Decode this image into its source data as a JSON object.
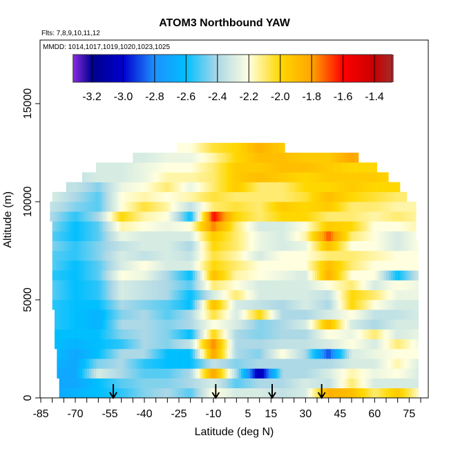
{
  "chart_data": {
    "type": "heatmap",
    "title": "ATOM3 Northbound YAW",
    "subtitle_flights": "Flts: 7,8,9,10,11,12",
    "subtitle_dates": "MMDD: 1014,1017,1019,1020,1023,1025",
    "xlabel": "Latitude (deg N)",
    "ylabel": "Altitude (m)",
    "xlim": [
      -85,
      83
    ],
    "ylim": [
      0,
      18200
    ],
    "x_tick_labels": [
      "-85",
      "-70",
      "-55",
      "-40",
      "-25",
      "-10",
      "5",
      "15",
      "30",
      "45",
      "60",
      "75"
    ],
    "x_tick_values": [
      -85,
      -70,
      -55,
      -40,
      -25,
      -10,
      5,
      15,
      30,
      45,
      60,
      75
    ],
    "y_tick_labels": [
      "0",
      "5000",
      "10000",
      "15000"
    ],
    "y_tick_values": [
      0,
      5000,
      10000,
      15000
    ],
    "colorbar": {
      "range": [
        -3.32,
        -1.29
      ],
      "tick_labels": [
        "-3.2",
        "-3.0",
        "-2.8",
        "-2.6",
        "-2.4",
        "-2.2",
        "-2.0",
        "-1.8",
        "-1.6",
        "-1.4"
      ],
      "tick_values": [
        -3.2,
        -3.0,
        -2.8,
        -2.6,
        -2.4,
        -2.2,
        -2.0,
        -1.8,
        -1.6,
        -1.4
      ],
      "stops": [
        {
          "v": -3.32,
          "color": "#8a2be2"
        },
        {
          "v": -3.2,
          "color": "#00008b"
        },
        {
          "v": -3.0,
          "color": "#0000cd"
        },
        {
          "v": -2.8,
          "color": "#1e90ff"
        },
        {
          "v": -2.6,
          "color": "#00bfff"
        },
        {
          "v": -2.4,
          "color": "#add8e6"
        },
        {
          "v": -2.2,
          "color": "#ffffe0"
        },
        {
          "v": -2.0,
          "color": "#ffd700"
        },
        {
          "v": -1.8,
          "color": "#ffa500"
        },
        {
          "v": -1.6,
          "color": "#ff0000"
        },
        {
          "v": -1.4,
          "color": "#c80000"
        },
        {
          "v": -1.29,
          "color": "#a52a2a"
        }
      ]
    },
    "grid_lat": [
      -80,
      -70,
      -60,
      -50,
      -40,
      -30,
      -20,
      -10,
      0,
      10,
      20,
      30,
      40,
      50,
      60,
      70,
      80
    ],
    "altitude_bin_m": 500,
    "rows": [
      {
        "alt": 0,
        "lat_range": [
          -77,
          79
        ],
        "values": [
          -2.7,
          -2.65,
          -2.6,
          -2.55,
          -2.45,
          -2.4,
          -2.5,
          -2.2,
          -2.3,
          -2.3,
          -2.35,
          -2.3,
          -1.85,
          -1.9,
          -2.1,
          -1.95,
          -2.2
        ]
      },
      {
        "alt": 500,
        "lat_range": [
          -77,
          79
        ],
        "values": [
          -2.7,
          -2.7,
          -2.6,
          -2.5,
          -2.45,
          -2.45,
          -2.4,
          -2.3,
          -2.5,
          -2.4,
          -2.4,
          -2.3,
          -2.35,
          -2.1,
          -2.3,
          -2.3,
          -2.3
        ]
      },
      {
        "alt": 1000,
        "lat_range": [
          -78,
          79
        ],
        "values": [
          -2.7,
          -2.7,
          -2.3,
          -2.4,
          -2.5,
          -2.5,
          -2.4,
          -1.8,
          -2.4,
          -3.1,
          -2.4,
          -2.4,
          -2.3,
          -2.15,
          -2.25,
          -2.2,
          -2.3
        ]
      },
      {
        "alt": 1500,
        "lat_range": [
          -78,
          79
        ],
        "values": [
          -2.65,
          -2.7,
          -2.45,
          -2.4,
          -2.55,
          -2.6,
          -2.6,
          -2.35,
          -2.45,
          -2.4,
          -2.4,
          -2.4,
          -2.4,
          -2.3,
          -2.3,
          -2.15,
          -2.3
        ]
      },
      {
        "alt": 2000,
        "lat_range": [
          -78,
          79
        ],
        "values": [
          -2.6,
          -2.7,
          -2.6,
          -2.4,
          -2.4,
          -2.6,
          -2.6,
          -1.8,
          -2.4,
          -2.45,
          -2.2,
          -2.4,
          -2.9,
          -2.3,
          -2.25,
          -2.2,
          -2.2
        ]
      },
      {
        "alt": 2500,
        "lat_range": [
          -79,
          79
        ],
        "values": [
          -2.6,
          -2.65,
          -2.6,
          -2.55,
          -2.4,
          -2.45,
          -2.35,
          -1.75,
          -2.4,
          -2.4,
          -2.35,
          -2.35,
          -2.3,
          -2.2,
          -2.3,
          -2.1,
          -2.25
        ]
      },
      {
        "alt": 3000,
        "lat_range": [
          -79,
          79
        ],
        "values": [
          -2.6,
          -2.6,
          -2.6,
          -2.45,
          -2.4,
          -2.45,
          -2.6,
          -2.0,
          -2.4,
          -2.45,
          -2.4,
          -2.4,
          -2.2,
          -2.25,
          -2.1,
          -2.3,
          -2.25
        ]
      },
      {
        "alt": 3500,
        "lat_range": [
          -79,
          79
        ],
        "values": [
          -2.55,
          -2.6,
          -2.65,
          -2.4,
          -2.4,
          -2.45,
          -2.4,
          -2.2,
          -2.3,
          -2.45,
          -2.4,
          -2.3,
          -1.9,
          -2.3,
          -2.4,
          -2.3,
          -2.3
        ]
      },
      {
        "alt": 4000,
        "lat_range": [
          -79,
          79
        ],
        "values": [
          -2.55,
          -2.6,
          -2.65,
          -2.45,
          -2.4,
          -2.5,
          -2.4,
          -2.05,
          -2.3,
          -2.0,
          -2.4,
          -2.4,
          -2.3,
          -2.2,
          -2.35,
          -2.35,
          -2.3
        ]
      },
      {
        "alt": 4500,
        "lat_range": [
          -80,
          79
        ],
        "values": [
          -2.55,
          -2.6,
          -2.6,
          -2.4,
          -2.45,
          -2.5,
          -2.6,
          -1.9,
          -2.3,
          -2.35,
          -2.4,
          -2.3,
          -2.4,
          -2.0,
          -2.2,
          -2.3,
          -2.3
        ]
      },
      {
        "alt": 5000,
        "lat_range": [
          -80,
          79
        ],
        "values": [
          -2.5,
          -2.6,
          -2.55,
          -2.3,
          -2.35,
          -2.4,
          -2.6,
          -2.3,
          -2.1,
          -2.3,
          -2.3,
          -2.3,
          -2.35,
          -2.0,
          -2.1,
          -2.25,
          -2.25
        ]
      },
      {
        "alt": 5500,
        "lat_range": [
          -80,
          79
        ],
        "values": [
          -2.5,
          -2.6,
          -2.55,
          -2.3,
          -2.35,
          -2.4,
          -2.5,
          -2.1,
          -2.2,
          -2.3,
          -2.3,
          -2.3,
          -2.2,
          -2.1,
          -2.3,
          -2.2,
          -2.25
        ]
      },
      {
        "alt": 6000,
        "lat_range": [
          -80,
          79
        ],
        "values": [
          -2.55,
          -2.6,
          -2.5,
          -2.2,
          -2.25,
          -2.4,
          -2.6,
          -1.9,
          -2.15,
          -2.2,
          -2.25,
          -2.3,
          -1.85,
          -2.2,
          -2.2,
          -2.6,
          -2.3
        ]
      },
      {
        "alt": 6500,
        "lat_range": [
          -80,
          79
        ],
        "values": [
          -2.5,
          -2.6,
          -2.5,
          -2.3,
          -2.2,
          -2.3,
          -2.3,
          -2.0,
          -2.1,
          -2.2,
          -2.2,
          -2.2,
          -1.9,
          -2.1,
          -2.2,
          -2.2,
          -2.2
        ]
      },
      {
        "alt": 7000,
        "lat_range": [
          -80,
          79
        ],
        "values": [
          -2.5,
          -2.55,
          -2.45,
          -2.3,
          -2.35,
          -2.3,
          -2.35,
          -2.05,
          -2.15,
          -2.3,
          -2.2,
          -2.2,
          -2.1,
          -2.1,
          -2.15,
          -2.2,
          -2.2
        ]
      },
      {
        "alt": 7500,
        "lat_range": [
          -80,
          79
        ],
        "values": [
          -2.45,
          -2.55,
          -2.45,
          -2.35,
          -2.3,
          -2.3,
          -2.4,
          -2.0,
          -2.1,
          -2.25,
          -2.3,
          -2.25,
          -1.9,
          -2.2,
          -2.2,
          -2.3,
          -2.2
        ]
      },
      {
        "alt": 8000,
        "lat_range": [
          -80,
          78
        ],
        "values": [
          -2.5,
          -2.6,
          -2.5,
          -2.25,
          -2.3,
          -2.3,
          -2.3,
          -1.95,
          -2.1,
          -2.25,
          -2.3,
          -2.15,
          -1.7,
          -2.1,
          -2.2,
          -2.3,
          -2.2
        ]
      },
      {
        "alt": 8500,
        "lat_range": [
          -80,
          78
        ],
        "values": [
          -2.45,
          -2.6,
          -2.5,
          -2.15,
          -2.2,
          -2.25,
          -2.2,
          -1.75,
          -2.1,
          -2.3,
          -2.3,
          -2.2,
          -1.95,
          -2.0,
          -2.2,
          -2.2,
          -2.15
        ]
      },
      {
        "alt": 9000,
        "lat_range": [
          -81,
          78
        ],
        "values": [
          -2.4,
          -2.55,
          -2.4,
          -2.0,
          -2.15,
          -2.2,
          -2.6,
          -1.6,
          -2.0,
          -2.1,
          -2.0,
          -2.0,
          -2.1,
          -2.1,
          -2.15,
          -2.1,
          -2.15
        ]
      },
      {
        "alt": 9500,
        "lat_range": [
          -81,
          78
        ],
        "values": [
          -2.35,
          -2.45,
          -2.5,
          -2.2,
          -2.05,
          -2.15,
          -2.35,
          -2.1,
          -2.05,
          -2.1,
          -1.95,
          -2.0,
          -1.95,
          -2.1,
          -2.1,
          -2.15,
          -2.15
        ]
      },
      {
        "alt": 10000,
        "lat_range": [
          -80,
          74
        ],
        "values": [
          -2.3,
          -2.4,
          -2.5,
          -2.2,
          -2.15,
          -2.2,
          -2.15,
          -2.05,
          -2.1,
          -2.1,
          -2.1,
          -2.05,
          -1.9,
          -2.0,
          -2.05,
          -2.1,
          -2.1
        ]
      },
      {
        "alt": 10500,
        "lat_range": [
          -74,
          71
        ],
        "values": [
          -2.35,
          -2.35,
          -2.45,
          -2.25,
          -2.2,
          -2.1,
          -2.25,
          -2.1,
          -1.95,
          -2.1,
          -2.1,
          -2.0,
          -2.0,
          -1.95,
          -2.0,
          -2.0,
          -2.0
        ]
      },
      {
        "alt": 11000,
        "lat_range": [
          -67,
          66
        ],
        "values": [
          -2.35,
          -2.35,
          -2.3,
          -2.3,
          -2.25,
          -2.15,
          -2.15,
          -2.1,
          -1.95,
          -1.9,
          -1.95,
          -2.0,
          -1.95,
          -1.95,
          -1.95,
          -2.0,
          -2.0
        ]
      },
      {
        "alt": 11500,
        "lat_range": [
          -61,
          61
        ],
        "values": [
          -2.3,
          -2.3,
          -2.3,
          -2.3,
          -2.25,
          -2.2,
          -2.2,
          -2.1,
          -1.95,
          -1.95,
          -1.9,
          -1.9,
          -1.95,
          -2.0,
          -2.0,
          -2.0,
          -2.0
        ]
      },
      {
        "alt": 12000,
        "lat_range": [
          -45,
          53
        ],
        "values": [
          -2.3,
          -2.3,
          -2.3,
          -2.3,
          -2.3,
          -2.25,
          -2.25,
          -2.15,
          -2.0,
          -1.9,
          -1.9,
          -1.95,
          -1.95,
          -1.8,
          -1.9,
          -1.9,
          -1.9
        ]
      },
      {
        "alt": 12500,
        "lat_range": [
          -26,
          21
        ],
        "values": [
          -2.2,
          -2.2,
          -2.2,
          -2.2,
          -2.2,
          -2.2,
          -2.2,
          -2.05,
          -2.0,
          -1.85,
          -1.95,
          -1.95,
          -1.95,
          -1.95,
          -1.95,
          -1.95,
          -1.95
        ]
      }
    ],
    "arrows_lat": [
      -53.5,
      -9,
      15.5,
      37
    ],
    "grid": false
  }
}
